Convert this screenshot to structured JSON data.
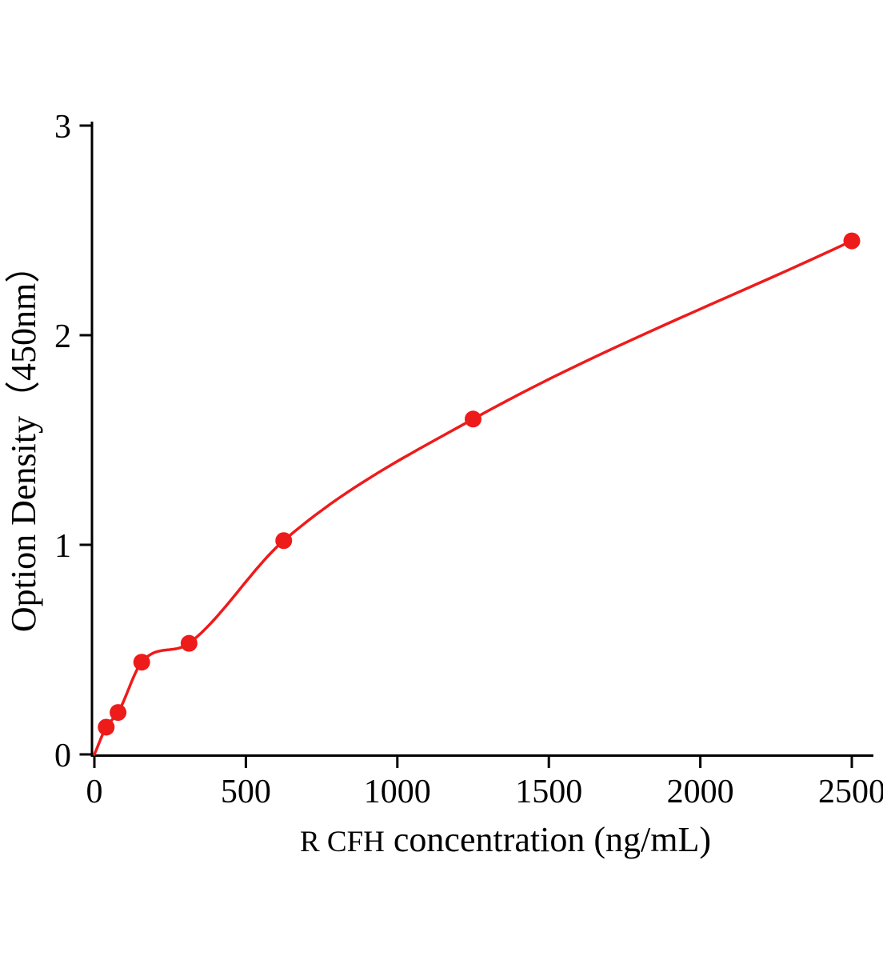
{
  "chart_data": {
    "type": "scatter",
    "subtype": "scatter-with-fitted-curve",
    "title": "",
    "xlabel": "R CFH concentration (ng/mL)",
    "xlabel_prefix": "R CFH",
    "xlabel_suffix": " concentration (ng/mL)",
    "ylabel": "Option Density（450nm）",
    "xlim": [
      0,
      2500
    ],
    "ylim": [
      0,
      3
    ],
    "x_ticks": [
      0,
      500,
      1000,
      1500,
      2000,
      2500
    ],
    "y_ticks": [
      0,
      1,
      2,
      3
    ],
    "grid": false,
    "legend": "none",
    "axis_color": "#000000",
    "background": "#ffffff",
    "series": [
      {
        "marker": "circle",
        "line": "smooth",
        "color": "#ee1b1b",
        "points": [
          {
            "x": 0,
            "y": 0
          },
          {
            "x": 39.06,
            "y": 0.13
          },
          {
            "x": 78.13,
            "y": 0.2
          },
          {
            "x": 156.25,
            "y": 0.44
          },
          {
            "x": 312.5,
            "y": 0.53
          },
          {
            "x": 625,
            "y": 1.02
          },
          {
            "x": 1250,
            "y": 1.6
          },
          {
            "x": 2500,
            "y": 2.45
          }
        ]
      }
    ]
  }
}
